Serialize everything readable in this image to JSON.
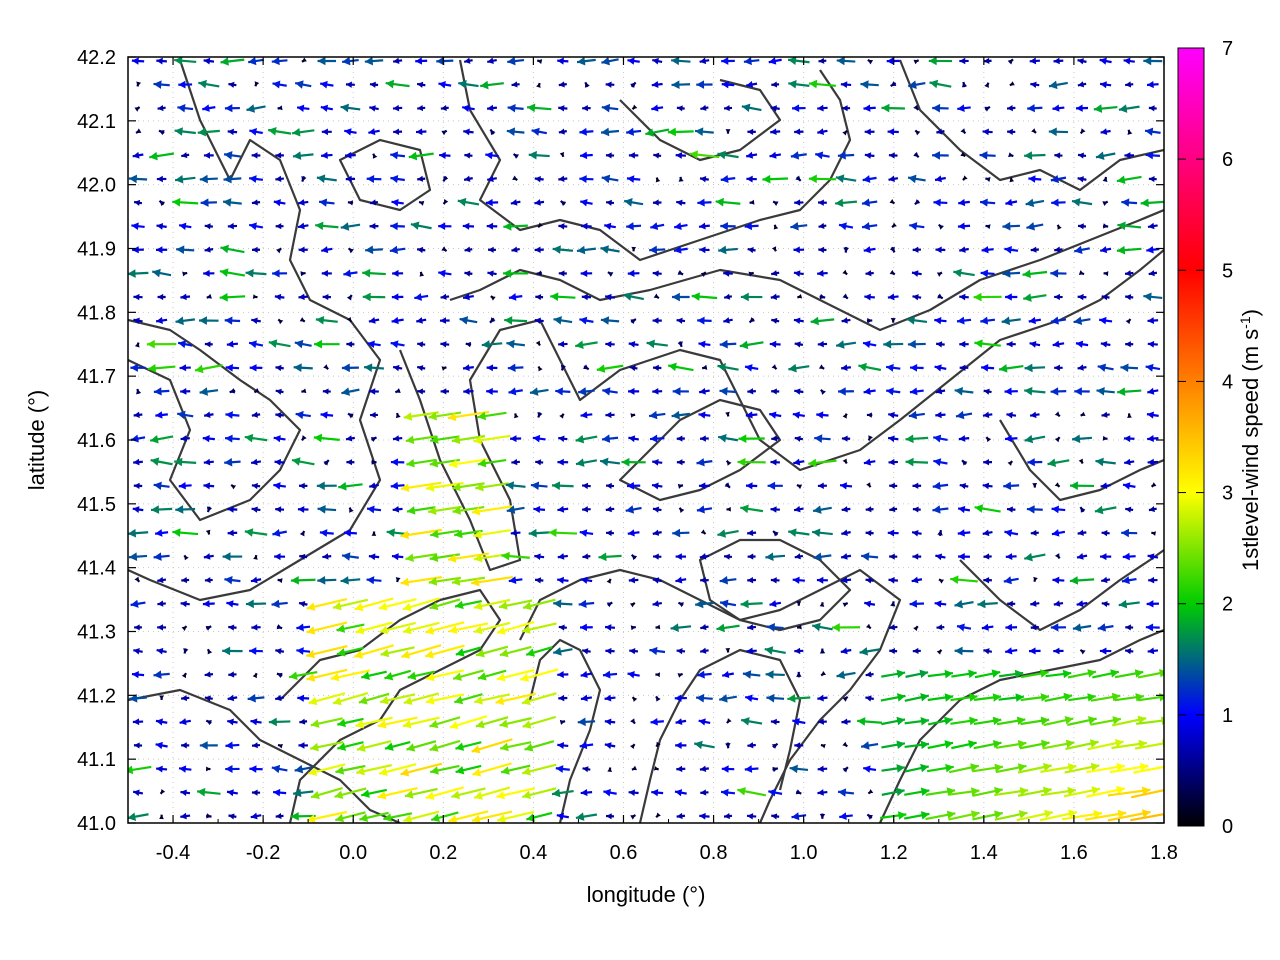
{
  "chart_data": {
    "type": "quiver",
    "xlabel": "longitude (°)",
    "ylabel": "latitude (°)",
    "xlim": [
      -0.5,
      1.8
    ],
    "ylim": [
      41.0,
      42.2
    ],
    "xticks": [
      "-0.4",
      "-0.2",
      "0.0",
      "0.2",
      "0.4",
      "0.6",
      "0.8",
      "1.0",
      "1.2",
      "1.4",
      "1.6",
      "1.8"
    ],
    "yticks": [
      "41.0",
      "41.1",
      "41.2",
      "41.3",
      "41.4",
      "41.5",
      "41.6",
      "41.7",
      "41.8",
      "41.9",
      "42.0",
      "42.1",
      "42.2"
    ],
    "colorbar": {
      "label_main": "1stlevel-wind speed (m s",
      "label_sup": "-1",
      "label_end": ")",
      "range": [
        0,
        7
      ],
      "ticks": [
        "0",
        "1",
        "2",
        "3",
        "4",
        "5",
        "6",
        "7"
      ],
      "colors": [
        "#000000",
        "#0000ff",
        "#00cc00",
        "#ffff00",
        "#ff8000",
        "#ff0000",
        "#ff00ff"
      ]
    },
    "grid": true,
    "contours": "terrain contour lines (dark gray)",
    "wind_field_summary": [
      {
        "region": "west and center",
        "direction": "easterly (arrows pointing west)",
        "speed_range_ms": [
          0.5,
          2.2
        ]
      },
      {
        "region": "lower-left coastal band",
        "direction": "east-northeasterly",
        "speed_range_ms": [
          2.0,
          3.5
        ]
      },
      {
        "region": "lower-right corner",
        "direction": "westerly (arrows pointing east)",
        "speed_range_ms": [
          1.5,
          3.8
        ]
      },
      {
        "region": "ridges / interior valleys",
        "direction": "variable",
        "speed_range_ms": [
          0,
          1
        ]
      }
    ]
  }
}
